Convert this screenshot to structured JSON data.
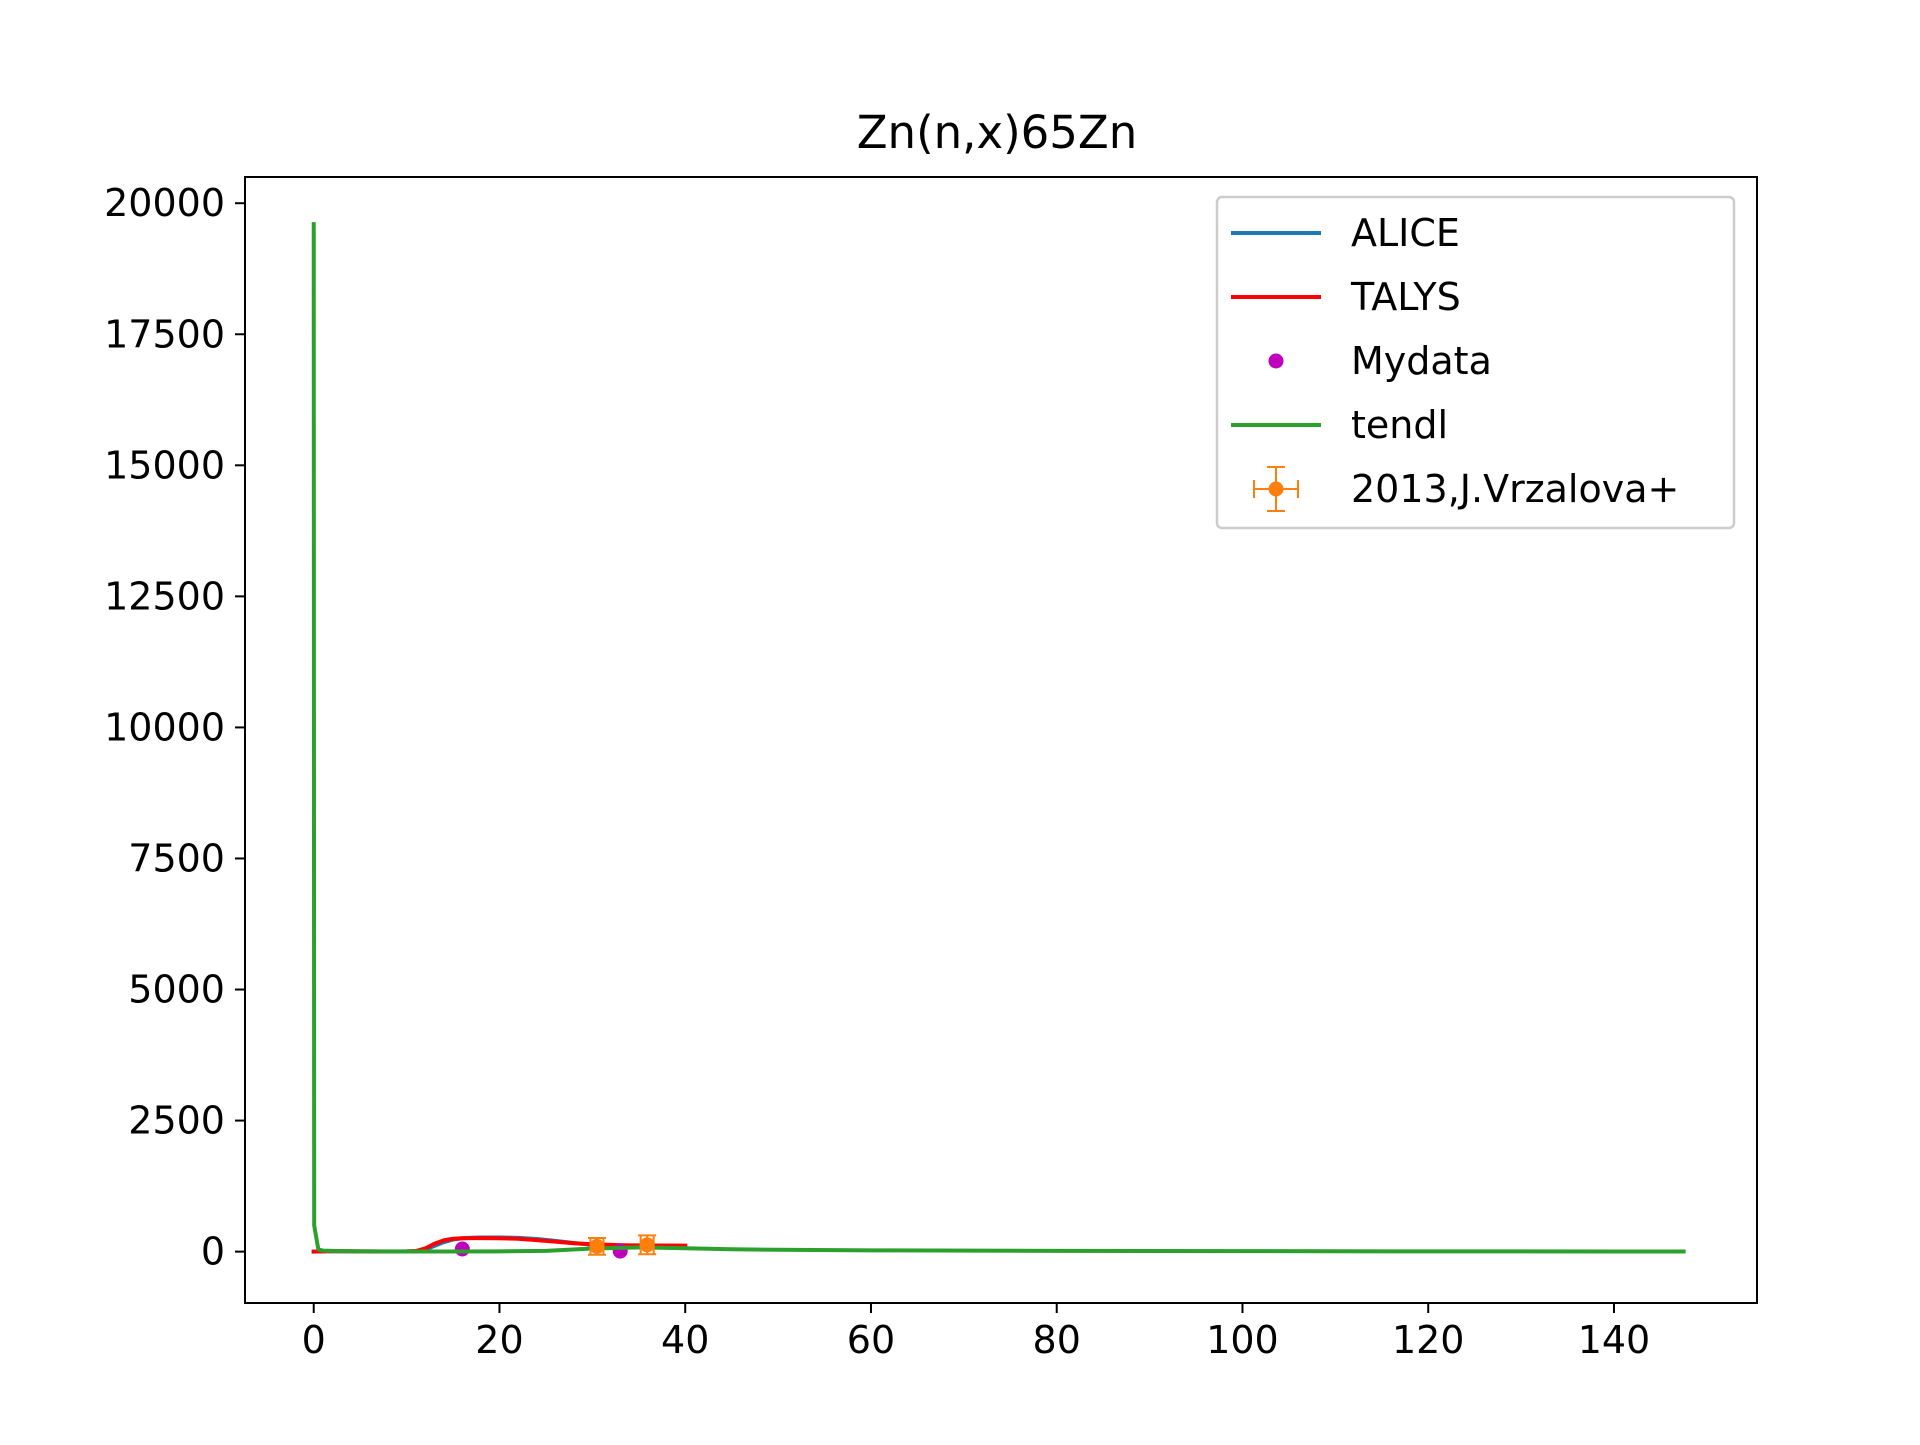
{
  "chart_data": {
    "type": "line",
    "title": "Zn(n,x)65Zn",
    "xlabel": "",
    "ylabel": "",
    "xlim": [
      -7.4,
      155.4
    ],
    "ylim": [
      -980,
      20500
    ],
    "xticks": [
      0,
      20,
      40,
      60,
      80,
      100,
      120,
      140
    ],
    "yticks": [
      0,
      2500,
      5000,
      7500,
      10000,
      12500,
      15000,
      17500,
      20000
    ],
    "xtick_labels": [
      "0",
      "20",
      "40",
      "60",
      "80",
      "100",
      "120",
      "140"
    ],
    "ytick_labels": [
      "0",
      "2500",
      "5000",
      "7500",
      "10000",
      "12500",
      "15000",
      "17500",
      "20000"
    ],
    "grid": false,
    "legend_position": "top-right",
    "series": [
      {
        "name": "ALICE",
        "kind": "line",
        "color": "#1f77b4",
        "x": [
          0,
          2,
          5,
          8,
          10,
          11,
          12,
          13,
          14,
          15,
          16,
          17,
          18,
          20,
          22,
          24,
          26,
          28,
          30,
          32,
          34,
          36,
          38,
          40
        ],
        "y": [
          0,
          10,
          5,
          2,
          5,
          10,
          40,
          110,
          180,
          230,
          255,
          265,
          270,
          270,
          262,
          240,
          205,
          165,
          130,
          110,
          100,
          95,
          92,
          90
        ]
      },
      {
        "name": "TALYS",
        "kind": "line",
        "color": "#ff0000",
        "x": [
          0,
          2,
          5,
          8,
          10,
          11,
          12,
          13,
          14,
          15,
          16,
          17,
          18,
          20,
          22,
          24,
          26,
          28,
          30,
          32,
          34,
          36,
          38,
          40
        ],
        "y": [
          0,
          10,
          5,
          2,
          5,
          12,
          60,
          150,
          215,
          245,
          255,
          258,
          258,
          255,
          245,
          220,
          190,
          160,
          140,
          128,
          120,
          118,
          116,
          115
        ]
      },
      {
        "name": "Mydata",
        "kind": "scatter",
        "color": "#bf00bf",
        "x": [
          16,
          33
        ],
        "y": [
          50,
          10
        ]
      },
      {
        "name": "tendl",
        "kind": "line",
        "color": "#2ca02c",
        "x": [
          0,
          0.01,
          0.05,
          0.5,
          1,
          3,
          5,
          10,
          15,
          20,
          25,
          30,
          35,
          40,
          45,
          50,
          60,
          80,
          100,
          120,
          140,
          147.5
        ],
        "y": [
          19600,
          15000,
          500,
          40,
          20,
          10,
          5,
          3,
          3,
          5,
          15,
          60,
          80,
          65,
          45,
          35,
          25,
          15,
          10,
          5,
          3,
          2
        ]
      },
      {
        "name": "2013,J.Vrzalova+",
        "kind": "errorbar",
        "color": "#ff7f0e",
        "x": [
          30.5,
          35.9
        ],
        "y": [
          100,
          130
        ],
        "xerr": [
          0.7,
          0.7
        ],
        "yerr": [
          160,
          180
        ]
      }
    ]
  }
}
